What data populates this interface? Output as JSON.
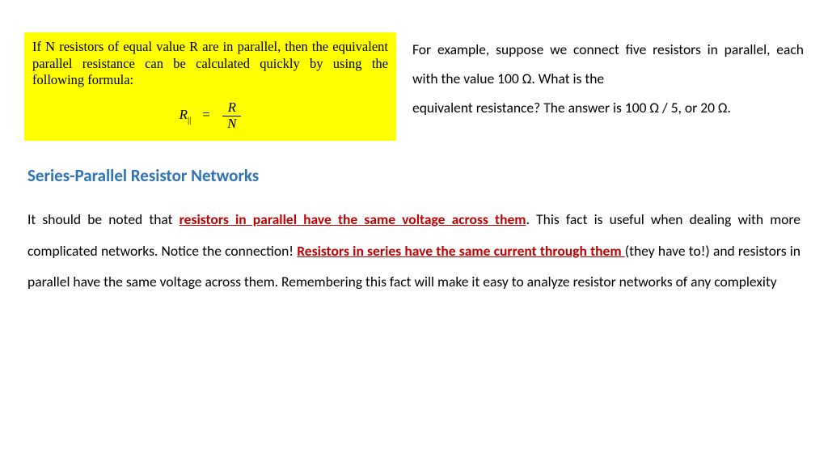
{
  "yellow_box": {
    "text": "If N resistors of equal value R are in parallel, then the equivalent parallel resistance can be calculated quickly by using the following formula:",
    "formula_left": "R",
    "formula_sub": "||",
    "formula_eq": "=",
    "formula_num": "R",
    "formula_den": "N",
    "background": "#ffff00"
  },
  "example": {
    "line1": "For example, suppose we connect five resistors in parallel, each with the value 100 Ω. What is the",
    "line2": "equivalent resistance? The answer is 100 Ω / 5, or 20 Ω."
  },
  "heading": "Series-Parallel Resistor Networks",
  "heading_color": "#2e74b5",
  "main_para": {
    "p1_a": "It should be noted that ",
    "p1_hl1": "resistors in parallel have the same voltage across them",
    "p1_b": ". This fact is useful when dealing with more complicated networks. Notice the connection! ",
    "p1_hl2": "Resistors in series have the same current through them ",
    "p1_c": "(they have to!) and resistors in parallel have the same voltage across them. Remembering this fact will make it easy to analyze resistor networks of any complexity"
  },
  "highlight_color": "#c00000"
}
